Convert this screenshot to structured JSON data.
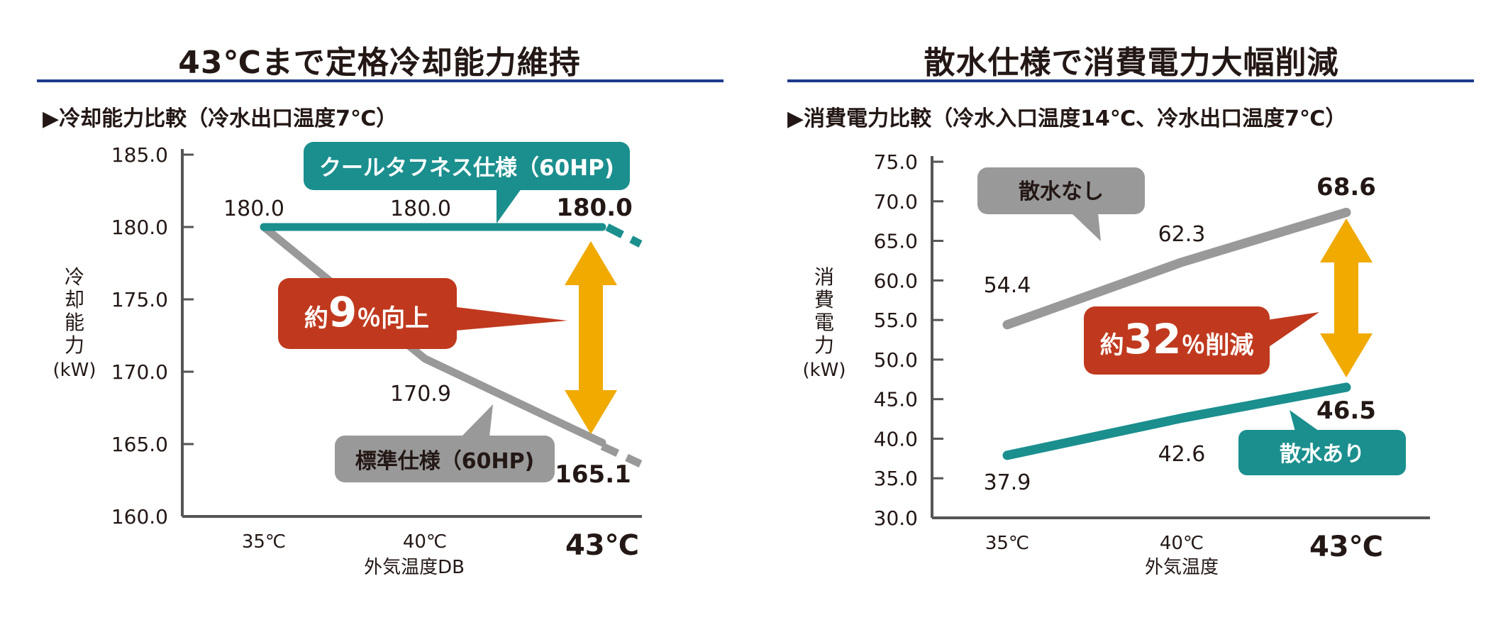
{
  "colors": {
    "teal": "#1a8f8e",
    "gray": "#999999",
    "red": "#c0391e",
    "gold": "#f0aa00",
    "axis": "#555555",
    "navy": "#1d3b8c"
  },
  "charts": [
    {
      "title": "43℃まで定格冷却能力維持",
      "subtitle": "▶冷却能力比較（冷水出口温度7℃）",
      "ylabel_lines": [
        "冷",
        "却",
        "能",
        "力",
        "(kW)"
      ],
      "xlabel": "外気温度DB",
      "callout": {
        "prefix": "約",
        "number": "9",
        "suffix": "％向上"
      }
    },
    {
      "title": "散水仕様で消費電力大幅削減",
      "subtitle": "▶消費電力比較（冷水入口温度14℃、冷水出口温度7℃）",
      "ylabel_lines": [
        "消",
        "費",
        "電",
        "力",
        "(kW)"
      ],
      "xlabel": "外気温度",
      "callout": {
        "prefix": "約",
        "number": "32",
        "suffix": "％削減"
      }
    }
  ],
  "chart_data": [
    {
      "type": "line",
      "title": "冷却能力比較（冷水出口温度7℃）",
      "xlabel": "外気温度DB",
      "ylabel": "冷却能力(kW)",
      "categories": [
        "35℃",
        "40℃",
        "43℃"
      ],
      "yticks": [
        "160.0",
        "165.0",
        "170.0",
        "175.0",
        "180.0",
        "185.0"
      ],
      "ylim": [
        160,
        185
      ],
      "series": [
        {
          "name": "クールタフネス仕様（60HP)",
          "values": [
            180.0,
            180.0,
            180.0
          ],
          "labels": [
            "180.0",
            "180.0",
            "180.0"
          ]
        },
        {
          "name": "標準仕様（60HP)",
          "values": [
            180.0,
            170.9,
            165.1
          ],
          "labels": [
            "180.0",
            "170.9",
            "165.1"
          ]
        }
      ]
    },
    {
      "type": "line",
      "title": "消費電力比較（冷水入口温度14℃、冷水出口温度7℃）",
      "xlabel": "外気温度",
      "ylabel": "消費電力(kW)",
      "categories": [
        "35℃",
        "40℃",
        "43℃"
      ],
      "yticks": [
        "30.0",
        "35.0",
        "40.0",
        "45.0",
        "50.0",
        "55.0",
        "60.0",
        "65.0",
        "70.0",
        "75.0"
      ],
      "ylim": [
        30,
        75
      ],
      "series": [
        {
          "name": "散水なし",
          "values": [
            54.4,
            62.3,
            68.6
          ],
          "labels": [
            "54.4",
            "62.3",
            "68.6"
          ]
        },
        {
          "name": "散水あり",
          "values": [
            37.9,
            42.6,
            46.5
          ],
          "labels": [
            "37.9",
            "42.6",
            "46.5"
          ]
        }
      ]
    }
  ]
}
